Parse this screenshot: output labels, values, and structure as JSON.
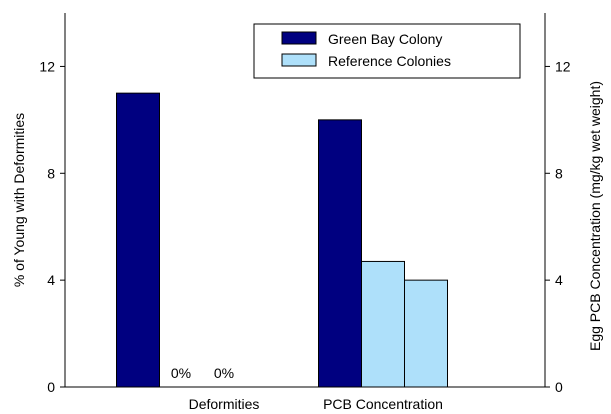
{
  "chart_data": {
    "type": "bar",
    "categories": [
      "Deformities",
      "PCB Concentration"
    ],
    "series": [
      {
        "name": "Green Bay Colony",
        "color": "#000080",
        "values": [
          {
            "category": "Deformities",
            "value": 11,
            "axis": "left"
          },
          {
            "category": "PCB Concentration",
            "value": 10,
            "axis": "right"
          }
        ]
      },
      {
        "name": "Reference Colonies",
        "color": "#aee0fa",
        "values": [
          {
            "category": "Deformities",
            "value": 0,
            "axis": "left",
            "label": "0%"
          },
          {
            "category": "Deformities",
            "value": 0,
            "axis": "left",
            "label": "0%"
          },
          {
            "category": "PCB Concentration",
            "value": 4.7,
            "axis": "right"
          },
          {
            "category": "PCB Concentration",
            "value": 4,
            "axis": "right"
          }
        ]
      }
    ],
    "ylabel_left": "% of Young with Deformities",
    "ylabel_right": "Egg PCB Concentration (mg/kg wet weight)",
    "ylim_left": [
      0,
      14
    ],
    "ylim_right": [
      0,
      14
    ],
    "yticks_left": [
      0,
      4,
      8,
      12
    ],
    "yticks_right": [
      0,
      4,
      8,
      12
    ],
    "grid": false,
    "legend_position": "top-right"
  }
}
